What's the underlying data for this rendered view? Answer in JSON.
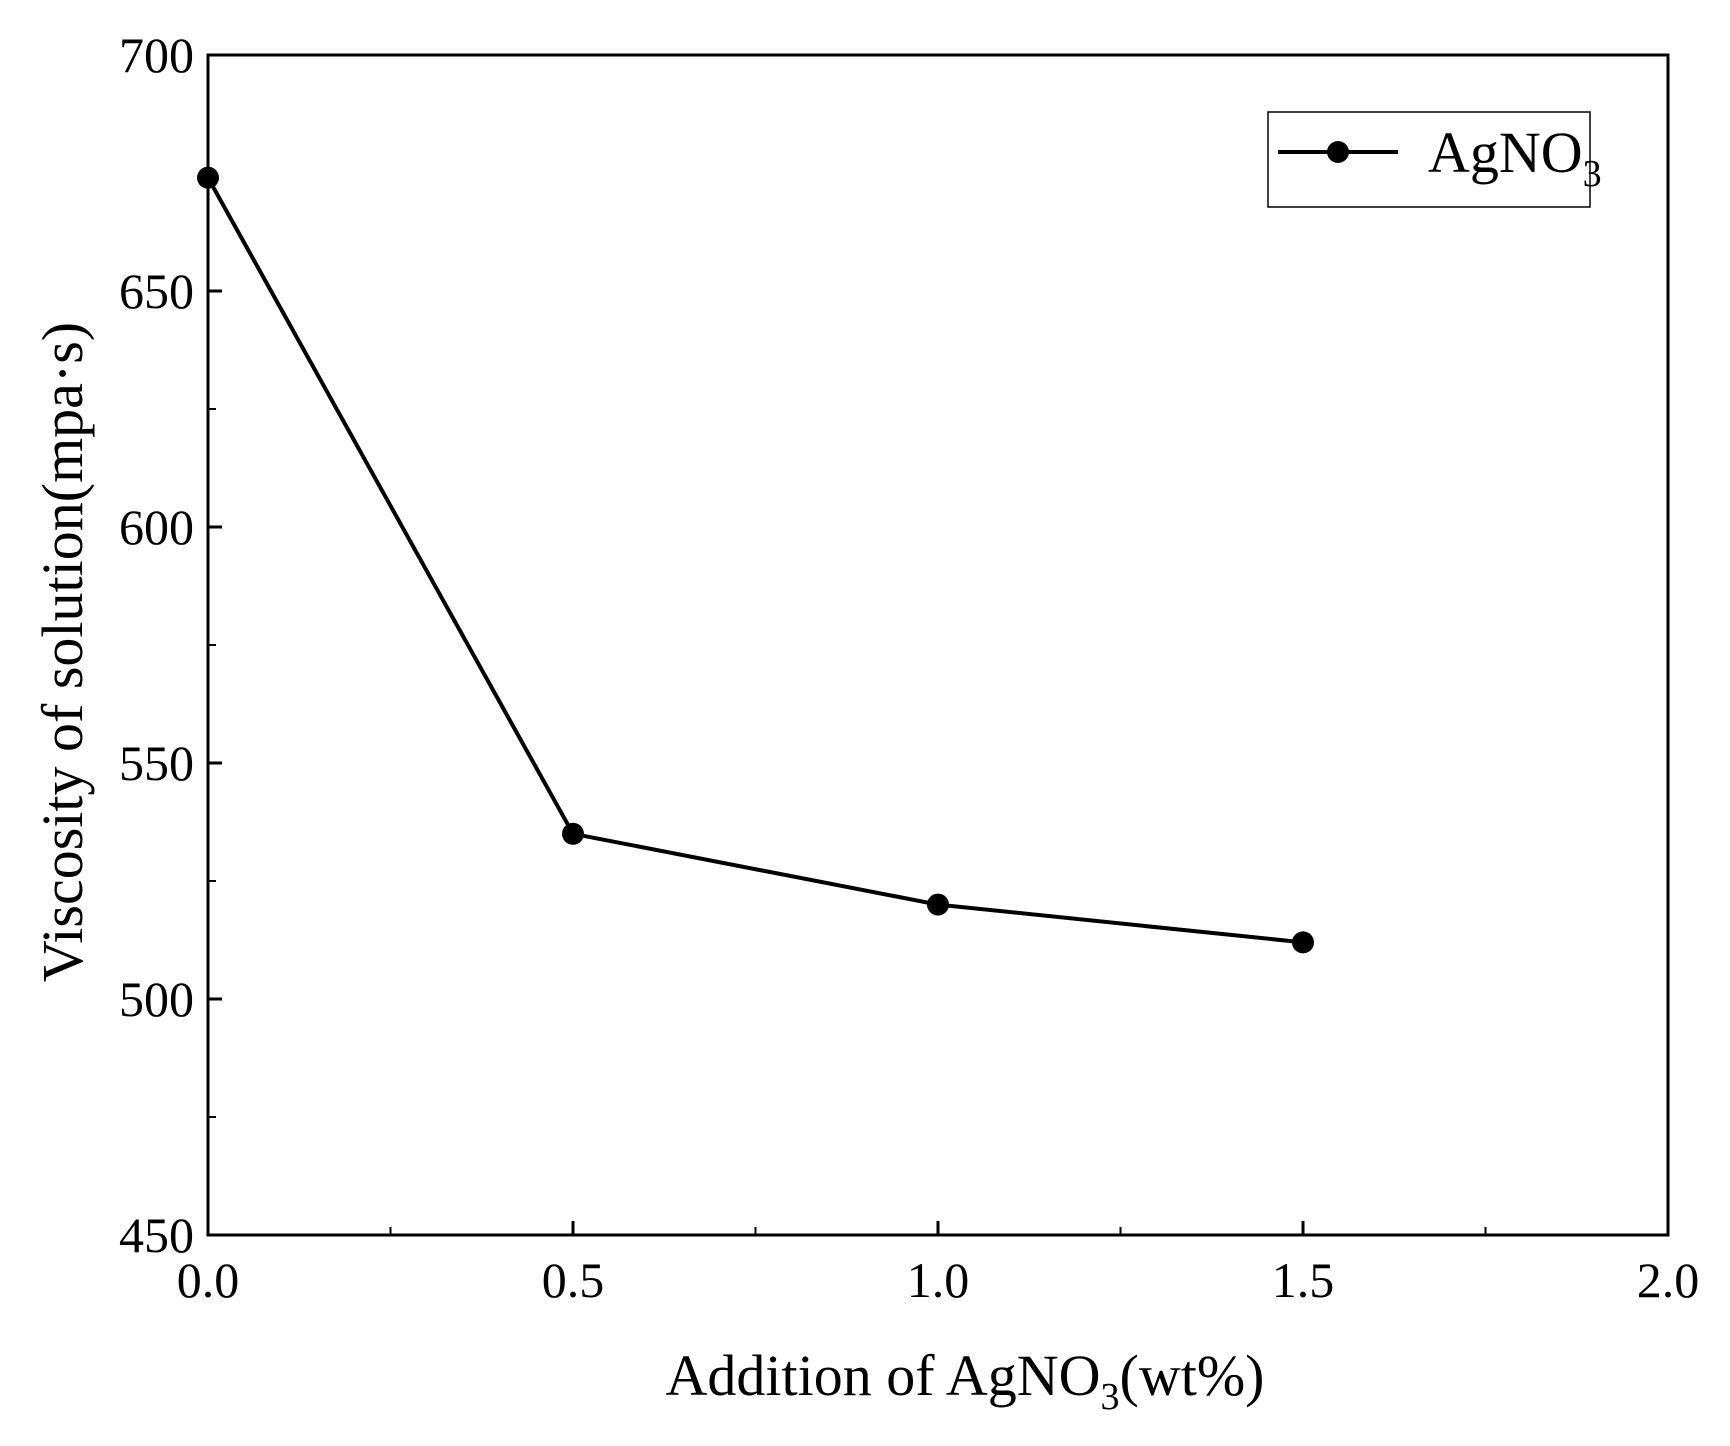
{
  "chart_data": {
    "type": "line",
    "title": "",
    "xlabel": {
      "prefix": "Addition of AgNO",
      "subscript": "3",
      "suffix": "(wt%)"
    },
    "ylabel": "Viscosity of solution(mpa·s)",
    "xlim": [
      0.0,
      2.0
    ],
    "ylim": [
      450,
      700
    ],
    "x_ticks": [
      "0.0",
      "0.5",
      "1.0",
      "1.5",
      "2.0"
    ],
    "y_ticks": [
      "450",
      "500",
      "550",
      "600",
      "650",
      "700"
    ],
    "grid": false,
    "legend_position": "top-right",
    "series": [
      {
        "name": {
          "base": "AgNO",
          "subscript": "3"
        },
        "color": "#000000",
        "marker": "circle",
        "x": [
          0.0,
          0.5,
          1.0,
          1.5
        ],
        "y": [
          674,
          535,
          520,
          512
        ]
      }
    ]
  }
}
